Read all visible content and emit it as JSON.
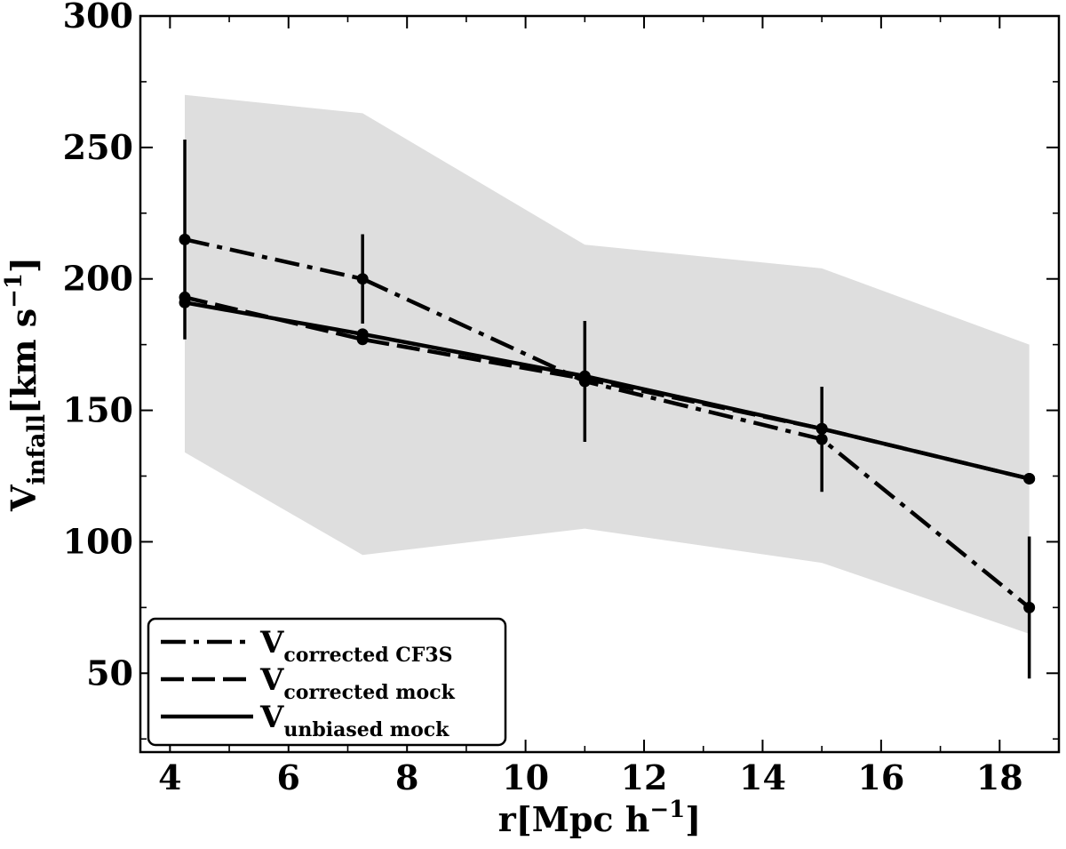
{
  "chart_data": {
    "type": "line",
    "xlabel": {
      "base": "r",
      "unit_main": "Mpc h",
      "unit_sup": "−1"
    },
    "ylabel": {
      "base": "V",
      "sub": "infall",
      "unit_main": "km s",
      "unit_sup": "−1"
    },
    "xlim": [
      3.5,
      19.0
    ],
    "ylim": [
      20,
      300
    ],
    "xticks": [
      4,
      6,
      8,
      10,
      12,
      14,
      16,
      18
    ],
    "yticks": [
      50,
      100,
      150,
      200,
      250,
      300
    ],
    "x_minor_step": 1,
    "y_minor_step": 25,
    "grid": false,
    "legend_position": "lower-left",
    "shaded_band": {
      "x": [
        4.25,
        7.25,
        11.0,
        15.0,
        18.5
      ],
      "lower": [
        134,
        95,
        105,
        92,
        65
      ],
      "upper": [
        270,
        263,
        213,
        204,
        175
      ],
      "color": "#dedede"
    },
    "series": [
      {
        "name_base": "V",
        "name_sub": "corrected CF3S",
        "style": "dashdot",
        "x": [
          4.25,
          7.25,
          11.0,
          15.0,
          18.5
        ],
        "y": [
          215,
          200,
          161,
          139,
          75
        ],
        "yerr": [
          38,
          17,
          23,
          20,
          27
        ]
      },
      {
        "name_base": "V",
        "name_sub": "corrected mock",
        "style": "dashed",
        "x": [
          4.25,
          7.25,
          11.0,
          15.0,
          18.5
        ],
        "y": [
          193,
          177,
          162,
          143,
          124
        ]
      },
      {
        "name_base": "V",
        "name_sub": "unbiased mock",
        "style": "solid",
        "x": [
          4.25,
          7.25,
          11.0,
          15.0,
          18.5
        ],
        "y": [
          191,
          179,
          163,
          143,
          124
        ]
      }
    ],
    "colors": {
      "line": "#000000",
      "band": "#dedede"
    }
  }
}
